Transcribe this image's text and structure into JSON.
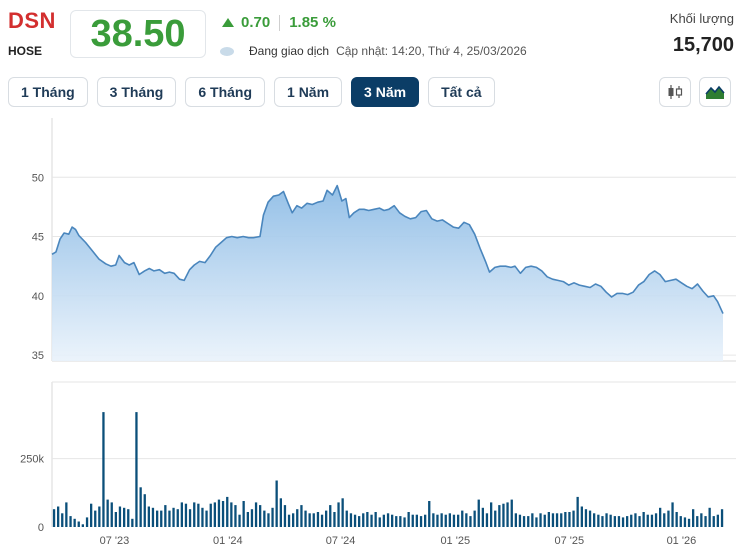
{
  "header": {
    "ticker": "DSN",
    "exchange": "HOSE",
    "price": "38.50",
    "change": "0.70",
    "change_pct": "1.85 %",
    "status": "Đang giao dịch",
    "update": "Cập nhật: 14:20, Thứ 4, 25/03/2026",
    "volume_label": "Khối lượng",
    "volume_value": "15,700"
  },
  "tabs": [
    {
      "label": "1 Tháng",
      "active": false
    },
    {
      "label": "3 Tháng",
      "active": false
    },
    {
      "label": "6 Tháng",
      "active": false
    },
    {
      "label": "1 Năm",
      "active": false
    },
    {
      "label": "3 Năm",
      "active": true
    },
    {
      "label": "Tất cả",
      "active": false
    }
  ],
  "toolbar": {
    "candle_icon": "candlestick-icon",
    "area_icon": "area-chart-icon"
  },
  "colors": {
    "up": "#3a9c3a",
    "ticker": "#d32f2f",
    "line": "#4a86bd",
    "volume": "#0b4f7a",
    "active_tab": "#0b3d66"
  },
  "chart_data": [
    {
      "type": "area",
      "name": "price",
      "y_ticks": [
        35,
        40,
        45,
        50
      ],
      "ylim": [
        34.5,
        55
      ],
      "x_ticks": [
        {
          "label": "07 '23",
          "t": 0.093
        },
        {
          "label": "01 '24",
          "t": 0.262
        },
        {
          "label": "07 '24",
          "t": 0.43
        },
        {
          "label": "01 '25",
          "t": 0.601
        },
        {
          "label": "07 '25",
          "t": 0.771
        },
        {
          "label": "01 '26",
          "t": 0.938
        }
      ],
      "points": [
        [
          0,
          43.5
        ],
        [
          0.006,
          43.7
        ],
        [
          0.012,
          44.8
        ],
        [
          0.018,
          45.3
        ],
        [
          0.025,
          45.2
        ],
        [
          0.03,
          45.8
        ],
        [
          0.035,
          45.6
        ],
        [
          0.04,
          45.1
        ],
        [
          0.05,
          44.5
        ],
        [
          0.06,
          43.8
        ],
        [
          0.07,
          43.1
        ],
        [
          0.08,
          42.7
        ],
        [
          0.088,
          42.5
        ],
        [
          0.095,
          42.6
        ],
        [
          0.1,
          43.4
        ],
        [
          0.108,
          42.8
        ],
        [
          0.115,
          42.6
        ],
        [
          0.122,
          42.8
        ],
        [
          0.13,
          41.8
        ],
        [
          0.138,
          42.1
        ],
        [
          0.145,
          42.3
        ],
        [
          0.152,
          42.1
        ],
        [
          0.16,
          42.2
        ],
        [
          0.168,
          41.9
        ],
        [
          0.175,
          42.0
        ],
        [
          0.182,
          41.9
        ],
        [
          0.19,
          41.4
        ],
        [
          0.197,
          41.3
        ],
        [
          0.205,
          42.2
        ],
        [
          0.212,
          42.6
        ],
        [
          0.22,
          42.9
        ],
        [
          0.228,
          42.8
        ],
        [
          0.236,
          43.4
        ],
        [
          0.244,
          44.1
        ],
        [
          0.252,
          44.5
        ],
        [
          0.26,
          44.9
        ],
        [
          0.268,
          45.0
        ],
        [
          0.276,
          44.9
        ],
        [
          0.285,
          45.0
        ],
        [
          0.293,
          44.9
        ],
        [
          0.3,
          44.9
        ],
        [
          0.31,
          45.0
        ],
        [
          0.315,
          46.8
        ],
        [
          0.322,
          47.9
        ],
        [
          0.33,
          48.4
        ],
        [
          0.338,
          48.5
        ],
        [
          0.345,
          48.8
        ],
        [
          0.352,
          47.8
        ],
        [
          0.358,
          47.0
        ],
        [
          0.365,
          47.6
        ],
        [
          0.372,
          47.4
        ],
        [
          0.38,
          47.8
        ],
        [
          0.388,
          47.7
        ],
        [
          0.396,
          47.9
        ],
        [
          0.404,
          48.0
        ],
        [
          0.41,
          48.9
        ],
        [
          0.418,
          48.5
        ],
        [
          0.425,
          49.3
        ],
        [
          0.432,
          48.0
        ],
        [
          0.438,
          48.2
        ],
        [
          0.443,
          46.6
        ],
        [
          0.45,
          47.0
        ],
        [
          0.458,
          47.3
        ],
        [
          0.465,
          47.3
        ],
        [
          0.472,
          47.2
        ],
        [
          0.48,
          47.3
        ],
        [
          0.488,
          47.4
        ],
        [
          0.495,
          47.2
        ],
        [
          0.502,
          47.3
        ],
        [
          0.51,
          47.6
        ],
        [
          0.518,
          47.0
        ],
        [
          0.526,
          46.7
        ],
        [
          0.534,
          46.5
        ],
        [
          0.542,
          46.6
        ],
        [
          0.55,
          47.1
        ],
        [
          0.558,
          47.2
        ],
        [
          0.566,
          46.5
        ],
        [
          0.574,
          46.3
        ],
        [
          0.582,
          46.4
        ],
        [
          0.59,
          46.1
        ],
        [
          0.598,
          45.8
        ],
        [
          0.606,
          45.7
        ],
        [
          0.614,
          46.2
        ],
        [
          0.622,
          46.0
        ],
        [
          0.63,
          45.2
        ],
        [
          0.638,
          44.0
        ],
        [
          0.646,
          42.9
        ],
        [
          0.652,
          42.0
        ],
        [
          0.66,
          42.4
        ],
        [
          0.668,
          42.5
        ],
        [
          0.676,
          42.5
        ],
        [
          0.684,
          42.4
        ],
        [
          0.69,
          42.5
        ],
        [
          0.698,
          41.9
        ],
        [
          0.706,
          42.4
        ],
        [
          0.714,
          42.5
        ],
        [
          0.722,
          42.4
        ],
        [
          0.73,
          42.1
        ],
        [
          0.738,
          41.6
        ],
        [
          0.746,
          41.4
        ],
        [
          0.754,
          41.3
        ],
        [
          0.762,
          41.2
        ],
        [
          0.77,
          40.9
        ],
        [
          0.778,
          41.1
        ],
        [
          0.786,
          40.9
        ],
        [
          0.794,
          40.8
        ],
        [
          0.802,
          40.7
        ],
        [
          0.81,
          41.0
        ],
        [
          0.818,
          40.8
        ],
        [
          0.826,
          40.3
        ],
        [
          0.834,
          39.9
        ],
        [
          0.842,
          40.2
        ],
        [
          0.85,
          40.2
        ],
        [
          0.858,
          40.1
        ],
        [
          0.866,
          40.3
        ],
        [
          0.874,
          40.9
        ],
        [
          0.882,
          41.2
        ],
        [
          0.89,
          41.8
        ],
        [
          0.898,
          42.1
        ],
        [
          0.906,
          41.8
        ],
        [
          0.914,
          41.2
        ],
        [
          0.922,
          41.3
        ],
        [
          0.93,
          41.4
        ],
        [
          0.938,
          41.1
        ],
        [
          0.946,
          40.8
        ],
        [
          0.954,
          40.6
        ],
        [
          0.962,
          41.0
        ],
        [
          0.97,
          40.4
        ],
        [
          0.978,
          39.9
        ],
        [
          0.986,
          40.0
        ],
        [
          0.992,
          39.5
        ],
        [
          1.0,
          38.5
        ]
      ]
    },
    {
      "type": "bar",
      "name": "volume",
      "y_ticks": [
        0,
        250000
      ],
      "y_tick_labels": [
        "0",
        "250k"
      ],
      "ylim": [
        0,
        530000
      ],
      "values": [
        65000,
        75000,
        50000,
        90000,
        40000,
        30000,
        20000,
        10000,
        35000,
        85000,
        60000,
        75000,
        420000,
        100000,
        90000,
        55000,
        75000,
        70000,
        65000,
        30000,
        420000,
        145000,
        120000,
        75000,
        70000,
        60000,
        60000,
        80000,
        60000,
        70000,
        65000,
        90000,
        85000,
        65000,
        90000,
        85000,
        70000,
        60000,
        85000,
        90000,
        100000,
        95000,
        110000,
        90000,
        80000,
        45000,
        95000,
        55000,
        65000,
        90000,
        80000,
        60000,
        50000,
        70000,
        170000,
        105000,
        80000,
        45000,
        50000,
        65000,
        80000,
        60000,
        50000,
        50000,
        55000,
        45000,
        60000,
        80000,
        55000,
        90000,
        105000,
        60000,
        50000,
        45000,
        40000,
        50000,
        55000,
        45000,
        55000,
        35000,
        45000,
        50000,
        45000,
        40000,
        40000,
        35000,
        55000,
        45000,
        45000,
        40000,
        45000,
        95000,
        50000,
        45000,
        50000,
        45000,
        50000,
        45000,
        45000,
        60000,
        50000,
        40000,
        60000,
        100000,
        70000,
        50000,
        90000,
        60000,
        80000,
        85000,
        90000,
        100000,
        50000,
        45000,
        40000,
        40000,
        50000,
        35000,
        50000,
        45000,
        55000,
        50000,
        50000,
        50000,
        55000,
        55000,
        60000,
        110000,
        75000,
        65000,
        60000,
        50000,
        45000,
        40000,
        50000,
        45000,
        40000,
        40000,
        35000,
        40000,
        45000,
        50000,
        40000,
        55000,
        45000,
        45000,
        50000,
        70000,
        50000,
        60000,
        90000,
        55000,
        40000,
        35000,
        30000,
        65000,
        40000,
        50000,
        40000,
        70000,
        40000,
        45000,
        65000
      ]
    }
  ]
}
